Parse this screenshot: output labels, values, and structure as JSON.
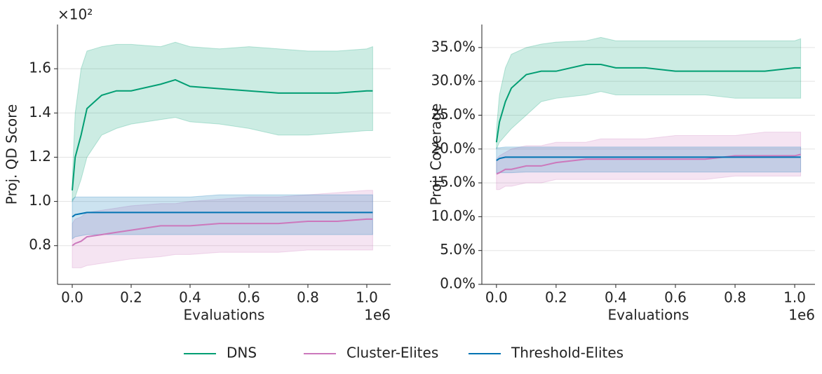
{
  "chart_data": [
    {
      "type": "line",
      "xlabel": "Evaluations",
      "ylabel": "Proj. QD Score",
      "x_multiplier": "1e6",
      "y_multiplier": "×10²",
      "x": [
        0,
        0.01,
        0.03,
        0.05,
        0.1,
        0.15,
        0.2,
        0.3,
        0.35,
        0.4,
        0.5,
        0.6,
        0.7,
        0.8,
        0.9,
        1.0,
        1.02
      ],
      "xlim": [
        -0.05,
        1.081
      ],
      "xticks": [
        {
          "value": 0,
          "label": "0.0"
        },
        0.2,
        0.4,
        0.6,
        0.8,
        {
          "value": 1,
          "label": "1.0"
        }
      ],
      "ylim": [
        0.625,
        1.8
      ],
      "yticks": [
        0.8,
        {
          "value": 1,
          "label": "1.0"
        },
        1.2,
        1.4,
        1.6
      ],
      "grid": true,
      "series": [
        {
          "name": "DNS",
          "color": "#029e73",
          "values": [
            1.05,
            1.2,
            1.3,
            1.42,
            1.48,
            1.5,
            1.5,
            1.53,
            1.55,
            1.52,
            1.51,
            1.5,
            1.49,
            1.49,
            1.49,
            1.5,
            1.5
          ],
          "lower": [
            1.0,
            1.02,
            1.1,
            1.2,
            1.3,
            1.33,
            1.35,
            1.37,
            1.38,
            1.36,
            1.35,
            1.33,
            1.3,
            1.3,
            1.31,
            1.32,
            1.32
          ],
          "upper": [
            1.1,
            1.4,
            1.6,
            1.68,
            1.7,
            1.71,
            1.71,
            1.7,
            1.72,
            1.7,
            1.69,
            1.7,
            1.69,
            1.68,
            1.68,
            1.69,
            1.7
          ]
        },
        {
          "name": "Cluster-Elites",
          "color": "#cc78bc",
          "values": [
            0.8,
            0.81,
            0.82,
            0.84,
            0.85,
            0.86,
            0.87,
            0.89,
            0.89,
            0.89,
            0.9,
            0.9,
            0.9,
            0.91,
            0.91,
            0.92,
            0.92
          ],
          "lower": [
            0.7,
            0.7,
            0.7,
            0.71,
            0.72,
            0.73,
            0.74,
            0.75,
            0.76,
            0.76,
            0.77,
            0.77,
            0.77,
            0.78,
            0.78,
            0.78,
            0.78
          ],
          "upper": [
            0.9,
            0.92,
            0.93,
            0.95,
            0.96,
            0.97,
            0.98,
            0.99,
            0.99,
            1.0,
            1.01,
            1.02,
            1.02,
            1.03,
            1.04,
            1.05,
            1.05
          ]
        },
        {
          "name": "Threshold-Elites",
          "color": "#0173b2",
          "values": [
            0.93,
            0.94,
            0.945,
            0.95,
            0.95,
            0.95,
            0.95,
            0.95,
            0.95,
            0.95,
            0.95,
            0.95,
            0.95,
            0.95,
            0.95,
            0.95,
            0.95
          ],
          "lower": [
            0.83,
            0.84,
            0.845,
            0.85,
            0.85,
            0.85,
            0.85,
            0.85,
            0.85,
            0.85,
            0.85,
            0.85,
            0.85,
            0.85,
            0.85,
            0.85,
            0.85
          ],
          "upper": [
            1.01,
            1.02,
            1.02,
            1.02,
            1.02,
            1.02,
            1.02,
            1.02,
            1.02,
            1.02,
            1.03,
            1.03,
            1.03,
            1.03,
            1.03,
            1.03,
            1.03
          ]
        }
      ]
    },
    {
      "type": "line",
      "xlabel": "Evaluations",
      "ylabel": "Proj. Coverage",
      "x_multiplier": "1e6",
      "x": [
        0,
        0.01,
        0.03,
        0.05,
        0.1,
        0.15,
        0.2,
        0.3,
        0.35,
        0.4,
        0.5,
        0.6,
        0.7,
        0.8,
        0.9,
        1.0,
        1.02
      ],
      "xlim": [
        -0.049,
        1.068
      ],
      "xticks": [
        {
          "value": 0,
          "label": "0.0"
        },
        0.2,
        0.4,
        0.6,
        0.8,
        {
          "value": 1,
          "label": "1.0"
        }
      ],
      "ylim": [
        0,
        38.4
      ],
      "yticks": [
        {
          "value": 0,
          "label": "0.0%"
        },
        {
          "value": 5,
          "label": "5.0%"
        },
        {
          "value": 10,
          "label": "10.0%"
        },
        {
          "value": 15,
          "label": "15.0%"
        },
        {
          "value": 20,
          "label": "20.0%"
        },
        {
          "value": 25,
          "label": "25.0%"
        },
        {
          "value": 30,
          "label": "30.0%"
        },
        {
          "value": 35,
          "label": "35.0%"
        }
      ],
      "grid": true,
      "series": [
        {
          "color": "#029e73",
          "values": [
            21,
            24,
            27,
            29,
            31,
            31.5,
            31.5,
            32.5,
            32.5,
            32,
            32,
            31.5,
            31.5,
            31.5,
            31.5,
            32,
            32
          ],
          "lower": [
            20,
            21,
            22,
            23,
            25,
            27,
            27.5,
            28,
            28.5,
            28,
            28,
            28,
            28,
            27.5,
            27.5,
            27.5,
            27.5
          ],
          "upper": [
            23,
            28,
            32,
            34,
            35,
            35.5,
            35.8,
            36,
            36.5,
            36,
            36,
            36,
            36,
            36,
            36,
            36,
            36.3
          ]
        },
        {
          "color": "#cc78bc",
          "values": [
            16.3,
            16.5,
            17,
            17,
            17.5,
            17.5,
            18,
            18.5,
            18.5,
            18.5,
            18.5,
            18.5,
            18.5,
            19,
            19,
            19,
            19.2
          ],
          "lower": [
            14,
            14,
            14.5,
            14.5,
            15,
            15,
            15.5,
            15.5,
            15.5,
            15.5,
            15.5,
            15.5,
            15.5,
            16,
            16,
            16,
            16
          ],
          "upper": [
            18.5,
            19,
            19.5,
            20,
            20.5,
            20.5,
            21,
            21,
            21.5,
            21.5,
            21.5,
            22,
            22,
            22,
            22.5,
            22.5,
            22.5
          ]
        },
        {
          "color": "#0173b2",
          "values": [
            18.3,
            18.6,
            18.8,
            18.8,
            18.8,
            18.8,
            18.8,
            18.8,
            18.8,
            18.8,
            18.8,
            18.8,
            18.8,
            18.8,
            18.8,
            18.8,
            18.8
          ],
          "lower": [
            16.5,
            16.5,
            16.5,
            16.5,
            16.6,
            16.6,
            16.6,
            16.6,
            16.6,
            16.6,
            16.6,
            16.6,
            16.6,
            16.6,
            16.6,
            16.6,
            16.6
          ],
          "upper": [
            20.2,
            20.2,
            20.3,
            20.3,
            20.3,
            20.3,
            20.3,
            20.3,
            20.3,
            20.3,
            20.3,
            20.3,
            20.3,
            20.3,
            20.3,
            20.3,
            20.3
          ]
        }
      ]
    }
  ]
}
